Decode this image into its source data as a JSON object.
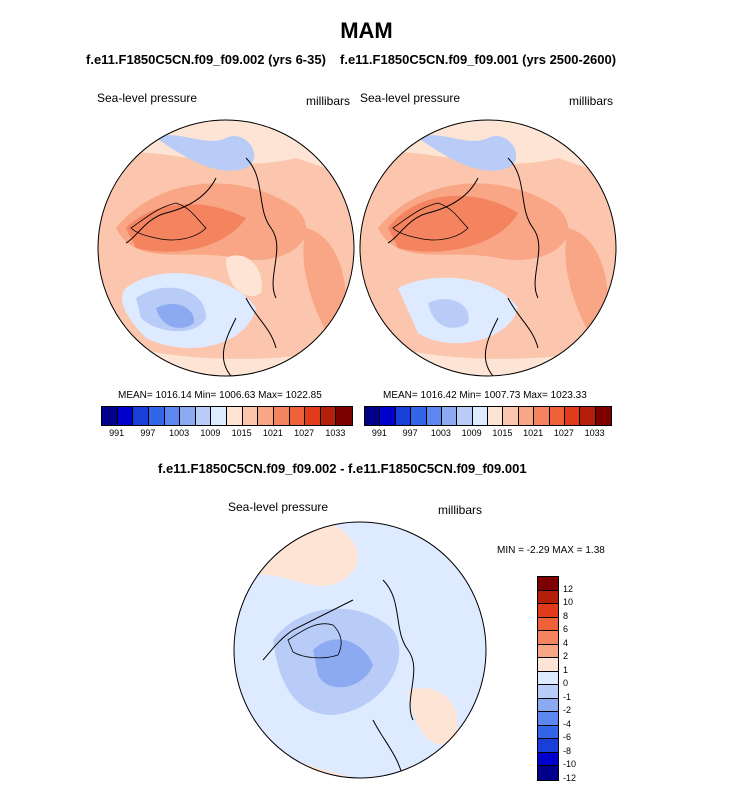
{
  "title": "MAM",
  "panels": [
    {
      "case": "f.e11.F1850C5CN.f09_f09.002 (yrs 6-35)",
      "field": "Sea-level pressure",
      "units": "millibars",
      "stats": "MEAN= 1016.14  Min= 1006.63  Max= 1022.85"
    },
    {
      "case": "f.e11.F1850C5CN.f09_f09.001 (yrs 2500-2600)",
      "field": "Sea-level pressure",
      "units": "millibars",
      "stats": "MEAN= 1016.42  Min= 1007.73  Max= 1023.33"
    }
  ],
  "diff": {
    "title": "f.e11.F1850C5CN.f09_f09.002 - f.e11.F1850C5CN.f09_f09.001",
    "field": "Sea-level pressure",
    "units": "millibars",
    "minmax": "MIN =  -2.29  MAX =   1.38"
  },
  "colorbar_abs": {
    "colors": [
      "#00008b",
      "#0000cd",
      "#1a3fd9",
      "#3366e6",
      "#5b87ee",
      "#8caaf2",
      "#b8ccf7",
      "#deeaff",
      "#fde4d4",
      "#fbc6ad",
      "#f8a685",
      "#f4845f",
      "#ef6139",
      "#e03c1c",
      "#b41f0c",
      "#7d0000"
    ],
    "labels": [
      "991",
      "997",
      "1003",
      "1009",
      "1015",
      "1021",
      "1027",
      "1033"
    ]
  },
  "colorbar_diff": {
    "colors": [
      "#7d0000",
      "#b41f0c",
      "#e03c1c",
      "#ef6139",
      "#f4845f",
      "#f8a685",
      "#fde4d4",
      "#deeaff",
      "#b8ccf7",
      "#8caaf2",
      "#5b87ee",
      "#3366e6",
      "#1a3fd9",
      "#0000cd",
      "#00008b"
    ],
    "labels": [
      "12",
      "10",
      "8",
      "6",
      "4",
      "2",
      "1",
      "0",
      "-1",
      "-2",
      "-4",
      "-6",
      "-8",
      "-10",
      "-12"
    ]
  }
}
